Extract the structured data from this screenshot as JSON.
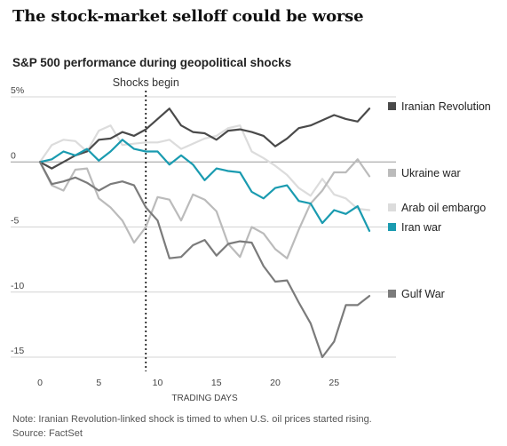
{
  "headline": "The stock-market selloff could be worse",
  "note": "Note: Iranian Revolution-linked shock is timed to when U.S. oil prices started rising.",
  "source": "Source: FactSet",
  "chart_data": {
    "type": "line",
    "title": "S&P 500 performance during geopolitical shocks",
    "xlabel": "TRADING DAYS",
    "ylabel": "",
    "xlim": [
      0,
      28
    ],
    "ylim": [
      -15,
      5
    ],
    "x_ticks": [
      0,
      5,
      10,
      15,
      20,
      25
    ],
    "y_ticks": [
      5,
      0,
      -5,
      -10,
      -15
    ],
    "y_tick_labels": [
      "5%",
      "0",
      "-5",
      "-10",
      "-15"
    ],
    "grid": "horizontal",
    "legend": "right",
    "annotation": {
      "label": "Shocks begin",
      "x": 9
    },
    "series": [
      {
        "name": "Arab oil embargo",
        "color": "#dcdcdc",
        "x": [
          0,
          1,
          2,
          3,
          4,
          5,
          6,
          7,
          8,
          9,
          10,
          11,
          12,
          13,
          14,
          15,
          16,
          17,
          18,
          19,
          20,
          21,
          22,
          23,
          24,
          25,
          26,
          27,
          28
        ],
        "values": [
          0,
          1.3,
          1.7,
          1.6,
          0.8,
          2.4,
          2.8,
          1.3,
          1.4,
          1.5,
          1.5,
          1.7,
          1.0,
          1.4,
          1.8,
          2.0,
          2.6,
          2.8,
          0.8,
          0.3,
          -0.3,
          -1.0,
          -2.0,
          -2.6,
          -1.3,
          -2.5,
          -2.8,
          -3.6,
          -3.7
        ]
      },
      {
        "name": "Ukraine war",
        "color": "#bbbbbb",
        "x": [
          0,
          1,
          2,
          3,
          4,
          5,
          6,
          7,
          8,
          9,
          10,
          11,
          12,
          13,
          14,
          15,
          16,
          17,
          18,
          19,
          20,
          21,
          22,
          23,
          24,
          25,
          26,
          27,
          28
        ],
        "values": [
          0,
          -1.8,
          -2.2,
          -0.6,
          -0.5,
          -2.8,
          -3.5,
          -4.5,
          -6.2,
          -5.0,
          -2.7,
          -2.9,
          -4.5,
          -2.5,
          -2.9,
          -3.8,
          -6.3,
          -7.3,
          -5.0,
          -5.5,
          -6.7,
          -7.4,
          -5.2,
          -3.2,
          -2.2,
          -0.8,
          -0.8,
          0.2,
          -1.1
        ]
      },
      {
        "name": "Iranian Revolution",
        "color": "#4a4a4a",
        "x": [
          0,
          1,
          2,
          3,
          4,
          5,
          6,
          7,
          8,
          9,
          10,
          11,
          12,
          13,
          14,
          15,
          16,
          17,
          18,
          19,
          20,
          21,
          22,
          23,
          24,
          25,
          26,
          27,
          28
        ],
        "values": [
          0,
          -0.5,
          0,
          0.5,
          0.8,
          1.7,
          1.8,
          2.3,
          2.0,
          2.5,
          3.3,
          4.1,
          2.8,
          2.3,
          2.2,
          1.7,
          2.4,
          2.5,
          2.3,
          2.0,
          1.2,
          1.8,
          2.6,
          2.8,
          3.2,
          3.6,
          3.3,
          3.1,
          4.1
        ]
      },
      {
        "name": "Iran war",
        "color": "#1a9bb0",
        "x": [
          0,
          1,
          2,
          3,
          4,
          5,
          6,
          7,
          8,
          9,
          10,
          11,
          12,
          13,
          14,
          15,
          16,
          17,
          18,
          19,
          20,
          21,
          22,
          23,
          24,
          25,
          26,
          27,
          28
        ],
        "values": [
          0,
          0.2,
          0.8,
          0.5,
          1.0,
          0.1,
          0.8,
          1.7,
          1.0,
          0.8,
          0.8,
          -0.2,
          0.5,
          -0.2,
          -1.4,
          -0.5,
          -0.7,
          -0.8,
          -2.3,
          -2.8,
          -2.0,
          -1.8,
          -3.0,
          -3.2,
          -4.7,
          -3.7,
          -4.0,
          -3.4,
          -5.3
        ]
      },
      {
        "name": "Gulf War",
        "color": "#7b7b7b",
        "x": [
          0,
          1,
          2,
          3,
          4,
          5,
          6,
          7,
          8,
          9,
          10,
          11,
          12,
          13,
          14,
          15,
          16,
          17,
          18,
          19,
          20,
          21,
          22,
          23,
          24,
          25,
          26,
          27,
          28
        ],
        "values": [
          0,
          -1.7,
          -1.5,
          -1.2,
          -1.6,
          -2.2,
          -1.7,
          -1.5,
          -1.8,
          -3.5,
          -4.5,
          -7.4,
          -7.3,
          -6.4,
          -6.0,
          -7.2,
          -6.3,
          -6.1,
          -6.2,
          -8.0,
          -9.2,
          -9.1,
          -10.8,
          -12.4,
          -15.0,
          -13.8,
          -11.0,
          -11.0,
          -10.3
        ]
      }
    ]
  }
}
